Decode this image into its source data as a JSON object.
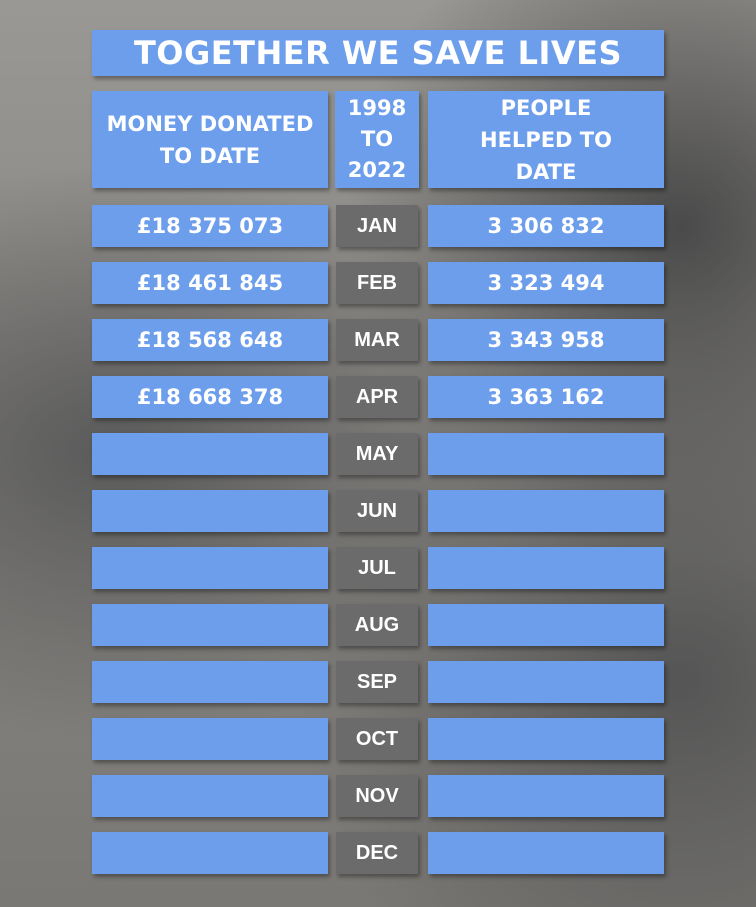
{
  "title": "TOGETHER WE SAVE LIVES",
  "headers": {
    "money": "MONEY DONATED TO DATE",
    "period": [
      "1998",
      "TO",
      "2022"
    ],
    "people": "PEOPLE HELPED TO DATE"
  },
  "rows": [
    {
      "month": "JAN",
      "money": "£18 375 073",
      "people": "3 306 832"
    },
    {
      "month": "FEB",
      "money": "£18 461 845",
      "people": "3 323 494"
    },
    {
      "month": "MAR",
      "money": "£18 568 648",
      "people": "3 343 958"
    },
    {
      "month": "APR",
      "money": "£18 668 378",
      "people": "3 363 162"
    },
    {
      "month": "MAY"
    },
    {
      "month": "JUN"
    },
    {
      "month": "JUL"
    },
    {
      "month": "AUG"
    },
    {
      "month": "SEP"
    },
    {
      "month": "OCT"
    },
    {
      "month": "NOV"
    },
    {
      "month": "DEC"
    }
  ]
}
